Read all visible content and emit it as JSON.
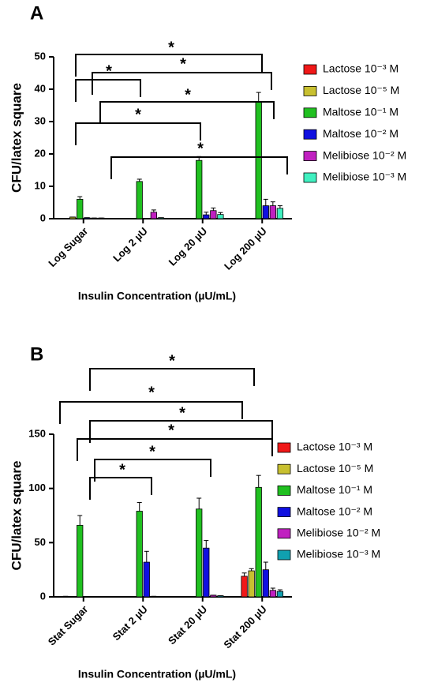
{
  "chart_data": [
    {
      "type": "bar",
      "label": "A",
      "y_label": "CFU/latex square",
      "x_label": "Insulin Concentration (µU/mL)",
      "categories": [
        "Log Sugar",
        "Log 2 µU",
        "Log 20 µU",
        "Log 200 µU"
      ],
      "ylim": [
        0,
        50
      ],
      "yticks": [
        0,
        10,
        20,
        30,
        40,
        50
      ],
      "series": [
        {
          "name": "Lactose 10⁻³ M",
          "color": "#f01818",
          "values": [
            0.1,
            0,
            0,
            0
          ],
          "errors": [
            0,
            0,
            0,
            0
          ]
        },
        {
          "name": "Lactose 10⁻⁵ M",
          "color": "#c8c030",
          "values": [
            0.5,
            0,
            0,
            0
          ],
          "errors": [
            0,
            0,
            0,
            0
          ]
        },
        {
          "name": "Maltose 10⁻¹ M",
          "color": "#20c020",
          "values": [
            6,
            11.5,
            18,
            36
          ],
          "errors": [
            0.8,
            0.7,
            1.2,
            3
          ]
        },
        {
          "name": "Maltose 10⁻² M",
          "color": "#1010e0",
          "values": [
            0.3,
            0,
            1.2,
            4
          ],
          "errors": [
            0,
            0,
            0.8,
            2
          ]
        },
        {
          "name": "Melibiose 10⁻² M",
          "color": "#c020c0",
          "values": [
            0.2,
            2,
            2.5,
            4
          ],
          "errors": [
            0,
            0.7,
            0.8,
            1.2
          ]
        },
        {
          "name": "Melibiose 10⁻³ M",
          "color": "#40f0c0",
          "values": [
            0.2,
            0.3,
            1.3,
            3.2
          ],
          "errors": [
            0,
            0,
            0.6,
            0.8
          ]
        }
      ],
      "annotations": [
        "*",
        "*",
        "*",
        "*",
        "*",
        "*"
      ]
    },
    {
      "type": "bar",
      "label": "B",
      "y_label": "CFU/latex square",
      "x_label": "Insulin Concentration (µU/mL)",
      "categories": [
        "Stat Sugar",
        "Stat 2 µU",
        "Stat 20 µU",
        "Stat 200 µU"
      ],
      "ylim": [
        0,
        150
      ],
      "yticks": [
        0,
        50,
        100,
        150
      ],
      "series": [
        {
          "name": "Lactose 10⁻³ M",
          "color": "#f01818",
          "values": [
            0.5,
            0,
            0,
            19
          ],
          "errors": [
            0,
            0,
            0,
            3
          ]
        },
        {
          "name": "Lactose 10⁻⁵ M",
          "color": "#c8c030",
          "values": [
            0,
            0,
            0,
            24
          ],
          "errors": [
            0,
            0,
            0,
            2
          ]
        },
        {
          "name": "Maltose 10⁻¹ M",
          "color": "#20c020",
          "values": [
            66,
            79,
            81,
            101
          ],
          "errors": [
            9,
            8,
            10,
            11
          ]
        },
        {
          "name": "Maltose 10⁻² M",
          "color": "#1010e0",
          "values": [
            0,
            32,
            45,
            25
          ],
          "errors": [
            0,
            10,
            7,
            7
          ]
        },
        {
          "name": "Melibiose 10⁻² M",
          "color": "#c020c0",
          "values": [
            0,
            0.5,
            1.5,
            6
          ],
          "errors": [
            0,
            0,
            0,
            2
          ]
        },
        {
          "name": "Melibiose 10⁻³ M",
          "color": "#10a0b0",
          "values": [
            0,
            0,
            1,
            5
          ],
          "errors": [
            0,
            0,
            0,
            1.5
          ]
        }
      ],
      "annotations": [
        "*",
        "*",
        "*",
        "*",
        "*",
        "*"
      ]
    }
  ]
}
